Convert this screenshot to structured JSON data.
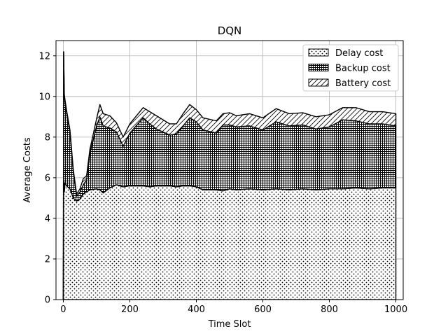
{
  "chart_data": {
    "type": "area",
    "stacked": true,
    "title": "DQN",
    "xlabel": "Time Slot",
    "ylabel": "Average Costs",
    "xlim": [
      -22,
      1022
    ],
    "ylim": [
      0,
      12.75
    ],
    "xticks": [
      0,
      200,
      400,
      600,
      800,
      1000
    ],
    "yticks": [
      0,
      2,
      4,
      6,
      8,
      10,
      12
    ],
    "grid": true,
    "legend_position": "top-right",
    "series": [
      {
        "name": "Delay cost",
        "pattern": "dots",
        "points": [
          [
            0,
            0
          ],
          [
            1,
            5.9
          ],
          [
            3,
            5.3
          ],
          [
            5,
            5.75
          ],
          [
            10,
            5.6
          ],
          [
            20,
            5.45
          ],
          [
            30,
            5.0
          ],
          [
            40,
            4.85
          ],
          [
            50,
            4.95
          ],
          [
            60,
            5.2
          ],
          [
            70,
            5.3
          ],
          [
            80,
            5.4
          ],
          [
            100,
            5.45
          ],
          [
            110,
            5.4
          ],
          [
            120,
            5.25
          ],
          [
            140,
            5.5
          ],
          [
            160,
            5.65
          ],
          [
            180,
            5.55
          ],
          [
            200,
            5.6
          ],
          [
            240,
            5.6
          ],
          [
            260,
            5.55
          ],
          [
            280,
            5.6
          ],
          [
            320,
            5.6
          ],
          [
            340,
            5.55
          ],
          [
            360,
            5.6
          ],
          [
            380,
            5.6
          ],
          [
            400,
            5.55
          ],
          [
            420,
            5.4
          ],
          [
            460,
            5.4
          ],
          [
            480,
            5.35
          ],
          [
            500,
            5.45
          ],
          [
            520,
            5.4
          ],
          [
            560,
            5.45
          ],
          [
            600,
            5.4
          ],
          [
            640,
            5.45
          ],
          [
            680,
            5.4
          ],
          [
            720,
            5.45
          ],
          [
            760,
            5.4
          ],
          [
            800,
            5.45
          ],
          [
            840,
            5.45
          ],
          [
            880,
            5.5
          ],
          [
            920,
            5.45
          ],
          [
            960,
            5.5
          ],
          [
            1000,
            5.5
          ]
        ]
      },
      {
        "name": "Backup cost",
        "pattern": "grid",
        "points": [
          [
            0,
            0
          ],
          [
            1,
            6.3
          ],
          [
            3,
            4.7
          ],
          [
            5,
            4.0
          ],
          [
            10,
            3.6
          ],
          [
            20,
            2.8
          ],
          [
            30,
            1.3
          ],
          [
            40,
            0.25
          ],
          [
            50,
            0.35
          ],
          [
            60,
            0.45
          ],
          [
            70,
            0.6
          ],
          [
            80,
            1.8
          ],
          [
            90,
            3.1
          ],
          [
            100,
            3.6
          ],
          [
            110,
            3.3
          ],
          [
            130,
            2.95
          ],
          [
            150,
            2.6
          ],
          [
            165,
            2.0
          ],
          [
            180,
            2.6
          ],
          [
            200,
            3.35
          ],
          [
            220,
            3.1
          ],
          [
            240,
            2.8
          ],
          [
            260,
            2.5
          ],
          [
            270,
            2.6
          ],
          [
            280,
            2.95
          ],
          [
            300,
            3.35
          ],
          [
            320,
            3.2
          ],
          [
            340,
            2.95
          ],
          [
            360,
            2.8
          ],
          [
            380,
            3.25
          ],
          [
            400,
            3.15
          ],
          [
            420,
            3.1
          ],
          [
            440,
            3.1
          ],
          [
            460,
            2.95
          ],
          [
            480,
            3.3
          ],
          [
            500,
            3.15
          ],
          [
            520,
            3.15
          ],
          [
            540,
            3.0
          ],
          [
            560,
            3.05
          ],
          [
            580,
            3.4
          ],
          [
            600,
            3.3
          ],
          [
            620,
            3.2
          ],
          [
            640,
            3.15
          ],
          [
            660,
            3.05
          ],
          [
            680,
            3.3
          ],
          [
            700,
            3.35
          ],
          [
            720,
            3.3
          ],
          [
            740,
            3.2
          ],
          [
            760,
            3.2
          ],
          [
            780,
            3.35
          ],
          [
            800,
            3.45
          ],
          [
            820,
            3.35
          ],
          [
            840,
            3.25
          ],
          [
            860,
            3.15
          ],
          [
            880,
            3.4
          ],
          [
            900,
            3.4
          ],
          [
            920,
            3.45
          ],
          [
            940,
            3.4
          ],
          [
            960,
            3.3
          ],
          [
            980,
            3.5
          ],
          [
            1000,
            3.45
          ]
        ]
      },
      {
        "name": "Battery cost",
        "pattern": "hatch",
        "points": [
          [
            0,
            0
          ],
          [
            1,
            0
          ],
          [
            3,
            0.1
          ],
          [
            5,
            0.1
          ],
          [
            10,
            0.1
          ],
          [
            20,
            0.1
          ],
          [
            30,
            0.1
          ],
          [
            40,
            0.1
          ],
          [
            50,
            0.15
          ],
          [
            60,
            0.3
          ],
          [
            70,
            0.2
          ],
          [
            80,
            0.2
          ],
          [
            90,
            0.35
          ],
          [
            100,
            0.6
          ],
          [
            110,
            0.6
          ],
          [
            130,
            0.6
          ],
          [
            150,
            0.45
          ],
          [
            165,
            0.45
          ],
          [
            180,
            0.45
          ],
          [
            200,
            0.5
          ],
          [
            220,
            0.6
          ],
          [
            240,
            0.65
          ],
          [
            260,
            0.55
          ],
          [
            270,
            0.5
          ],
          [
            280,
            0.6
          ],
          [
            300,
            0.65
          ],
          [
            320,
            0.6
          ],
          [
            340,
            0.6
          ],
          [
            360,
            0.6
          ],
          [
            380,
            0.55
          ],
          [
            400,
            0.6
          ],
          [
            420,
            0.55
          ],
          [
            440,
            0.6
          ],
          [
            460,
            0.6
          ],
          [
            480,
            0.65
          ],
          [
            500,
            0.6
          ],
          [
            520,
            0.6
          ],
          [
            540,
            0.6
          ],
          [
            560,
            0.6
          ],
          [
            580,
            0.6
          ],
          [
            600,
            0.65
          ],
          [
            620,
            0.6
          ],
          [
            640,
            0.6
          ],
          [
            660,
            0.6
          ],
          [
            680,
            0.6
          ],
          [
            700,
            0.6
          ],
          [
            720,
            0.6
          ],
          [
            740,
            0.6
          ],
          [
            760,
            0.6
          ],
          [
            780,
            0.6
          ],
          [
            800,
            0.6
          ],
          [
            820,
            0.6
          ],
          [
            840,
            0.6
          ],
          [
            860,
            0.6
          ],
          [
            880,
            0.6
          ],
          [
            900,
            0.6
          ],
          [
            920,
            0.6
          ],
          [
            940,
            0.55
          ],
          [
            960,
            0.6
          ],
          [
            980,
            0.6
          ],
          [
            1000,
            0.55
          ]
        ]
      }
    ]
  }
}
